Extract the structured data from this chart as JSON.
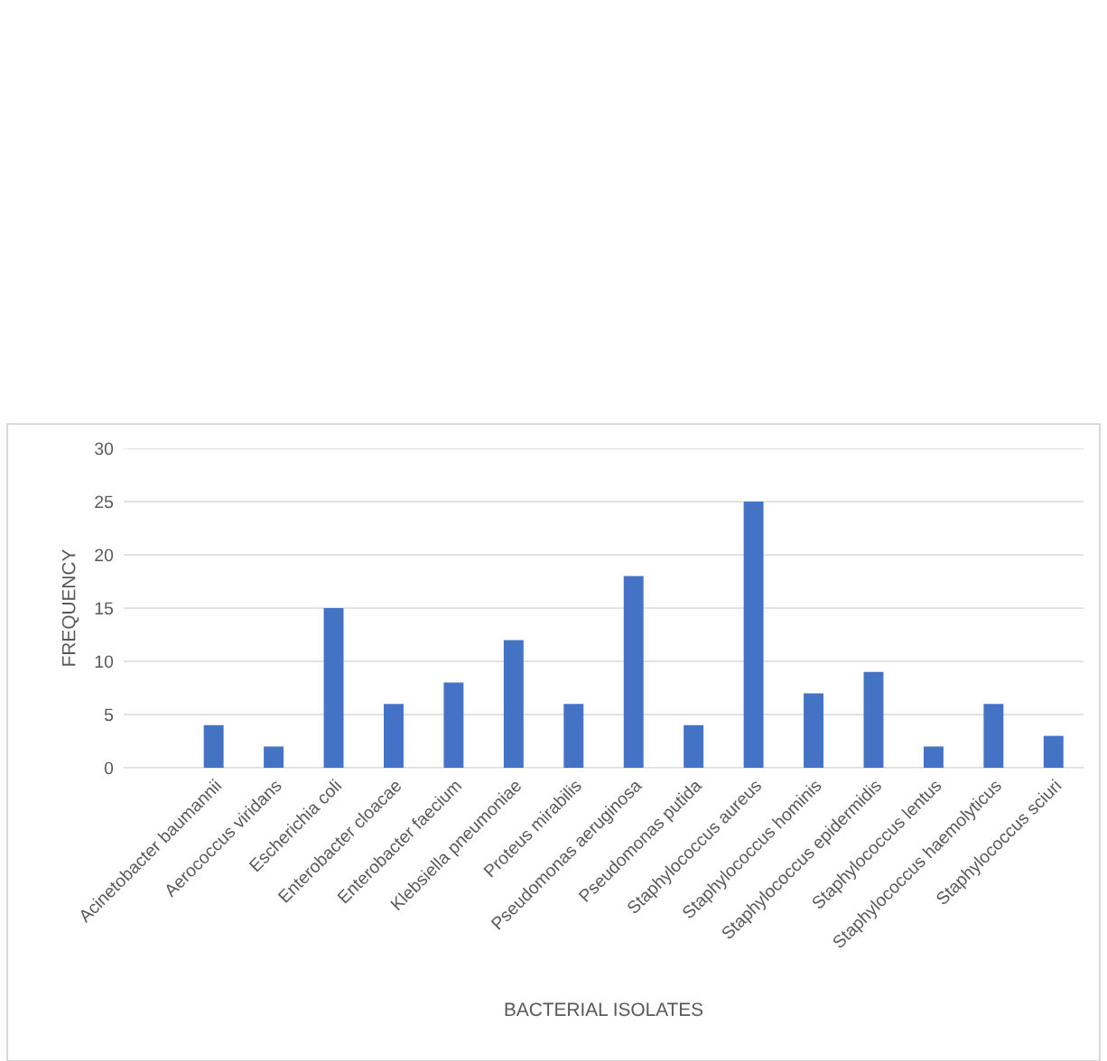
{
  "chart_data": {
    "type": "bar",
    "xlabel": "BACTERIAL ISOLATES",
    "ylabel": "FREQUENCY",
    "categories": [
      null,
      "Acinetobacter baumannii",
      "Aerococcus viridans",
      "Escherichia coli",
      "Enterobacter cloacae",
      "Enterobacter faecium",
      "Klebsiella pneumoniae",
      "Proteus mirabilis",
      "Pseudomonas aeruginosa",
      "Pseudomonas putida",
      "Staphylococcus aureus",
      "Staphylococcus hominis",
      "Staphylococcus epidermidis",
      "Staphylococcus lentus",
      "Staphylococcus haemolyticus",
      "Staphylococcus sciuri"
    ],
    "values": [
      null,
      4,
      2,
      15,
      6,
      8,
      12,
      6,
      18,
      4,
      25,
      7,
      9,
      2,
      6,
      3
    ],
    "color": "#4472c4",
    "ylim": [
      0,
      30
    ],
    "yticks": [
      0,
      5,
      10,
      15,
      20,
      25,
      30
    ],
    "grid": "y",
    "legend": false
  }
}
